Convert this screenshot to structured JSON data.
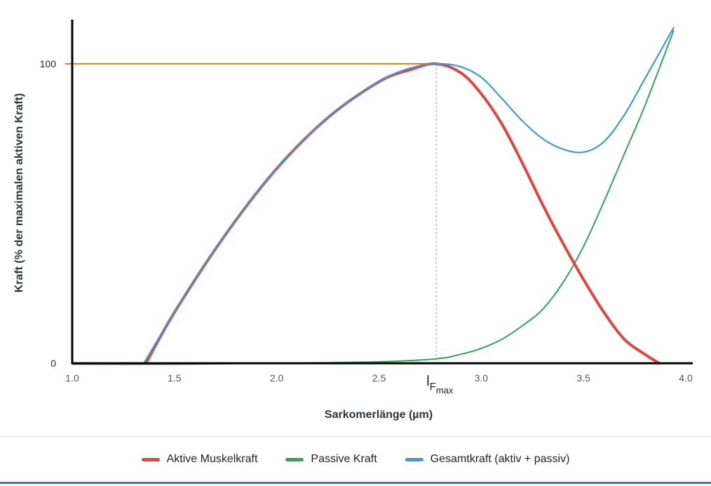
{
  "chart_data": {
    "type": "line",
    "xlabel": "Sarkomerlänge (µm)",
    "ylabel": "Kraft (% der maximalen aktiven Kraft)",
    "xlim": [
      1.0,
      4.0
    ],
    "ylim": [
      0,
      115
    ],
    "x_ticks": [
      "1.0",
      "1.5",
      "2.0",
      "2.5",
      "3.0",
      "3.5",
      "4.0"
    ],
    "y_ticks": [
      {
        "value": 0,
        "label": "0"
      },
      {
        "value": 100,
        "label": "100"
      }
    ],
    "reference_line": {
      "y": 100,
      "x_end": 2.78,
      "color": "#f07e26"
    },
    "marker": {
      "x": 2.78,
      "label_main": "l",
      "label_sub": "F",
      "label_subsub": "max"
    },
    "series": [
      {
        "name": "Aktive Muskelkraft",
        "color": "#e0473c",
        "x": [
          1.36,
          1.5,
          1.75,
          2.0,
          2.25,
          2.5,
          2.65,
          2.78,
          2.9,
          3.0,
          3.1,
          3.2,
          3.3,
          3.4,
          3.5,
          3.6,
          3.7,
          3.8,
          3.87
        ],
        "y": [
          0,
          17,
          43,
          65,
          82,
          94,
          98,
          100,
          97,
          90,
          80,
          67,
          53,
          40,
          28,
          17,
          8,
          3,
          0
        ]
      },
      {
        "name": "Passive Kraft",
        "color": "#2fa655",
        "x": [
          1.0,
          1.5,
          2.0,
          2.5,
          2.78,
          2.9,
          3.0,
          3.1,
          3.2,
          3.3,
          3.4,
          3.5,
          3.6,
          3.7,
          3.8,
          3.94
        ],
        "y": [
          -0.3,
          -0.3,
          0,
          0.5,
          1.5,
          3,
          5,
          8,
          12.5,
          18,
          27,
          39,
          54,
          70,
          86,
          111
        ]
      },
      {
        "name": "Gesamtkraft (aktiv + passiv)",
        "color": "#3b9ad9",
        "x": [
          1.35,
          1.5,
          1.75,
          2.0,
          2.25,
          2.5,
          2.65,
          2.78,
          2.9,
          3.0,
          3.1,
          3.2,
          3.3,
          3.4,
          3.5,
          3.6,
          3.7,
          3.8,
          3.94
        ],
        "y": [
          0,
          17,
          43,
          65,
          82,
          94,
          98.5,
          100,
          99,
          95.5,
          88.5,
          81,
          75,
          71.5,
          70.5,
          74,
          83,
          95,
          112
        ]
      }
    ]
  },
  "legend": [
    {
      "label": "Aktive Muskelkraft",
      "color": "#e0473c"
    },
    {
      "label": "Passive Kraft",
      "color": "#2fa655"
    },
    {
      "label": "Gesamtkraft (aktiv + passiv)",
      "color": "#3b9ad9"
    }
  ]
}
